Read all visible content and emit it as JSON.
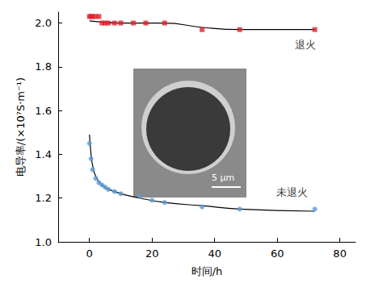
{
  "chart_data": {
    "type": "scatter",
    "x_label": "时间/h",
    "y_label": "电导率/(×10⁷S·m⁻¹)",
    "xlim": [
      -10,
      85
    ],
    "xticks": [
      0,
      20,
      40,
      60,
      80
    ],
    "ylim": [
      1.0,
      2.05
    ],
    "yticks": [
      {
        "value": 1.0,
        "label": "1.0"
      },
      1.2,
      1.4,
      1.6,
      1.8,
      {
        "value": 2.0,
        "label": "2.0"
      }
    ],
    "grid": false,
    "series": [
      {
        "name": "退火",
        "color": "#e0202a",
        "marker": "square",
        "x": [
          0,
          0.5,
          1,
          2,
          3,
          4,
          5,
          6,
          8,
          10,
          14,
          18,
          24,
          36,
          48,
          72
        ],
        "values": [
          2.03,
          2.03,
          2.03,
          2.03,
          2.03,
          2.0,
          2.0,
          2.0,
          2.0,
          2.0,
          2.0,
          2.0,
          2.0,
          1.97,
          1.97,
          1.97
        ],
        "fit_x": [
          0,
          10,
          24,
          36,
          48,
          72
        ],
        "fit_values": [
          2.01,
          2.0,
          2.0,
          1.98,
          1.97,
          1.97
        ]
      },
      {
        "name": "未退火",
        "color": "#5b9bd5",
        "marker": "circle",
        "x": [
          0,
          0.5,
          1,
          2,
          3,
          4,
          5,
          6,
          8,
          10,
          16,
          20,
          24,
          36,
          48,
          72
        ],
        "values": [
          1.45,
          1.38,
          1.33,
          1.29,
          1.27,
          1.26,
          1.25,
          1.24,
          1.23,
          1.22,
          1.21,
          1.19,
          1.18,
          1.16,
          1.15,
          1.15
        ],
        "fit_x": [
          0,
          0.5,
          1,
          2,
          4,
          8,
          16,
          24,
          36,
          48,
          72
        ],
        "fit_values": [
          1.49,
          1.4,
          1.35,
          1.3,
          1.26,
          1.23,
          1.2,
          1.18,
          1.165,
          1.15,
          1.14
        ]
      }
    ],
    "annotations": [
      {
        "text": "5 μm"
      }
    ]
  }
}
